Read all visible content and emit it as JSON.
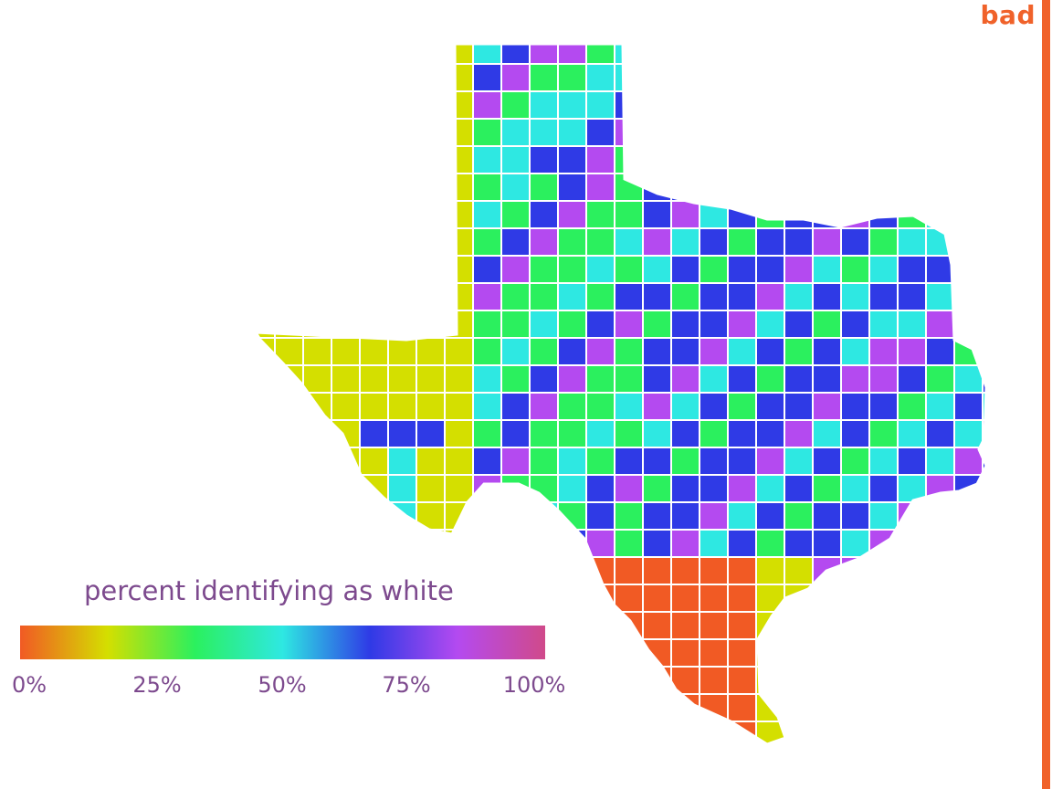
{
  "map": {
    "legend_title": "percent identifying as white",
    "legend_ticks": [
      "0%",
      "25%",
      "50%",
      "75%",
      "100%"
    ],
    "legend_colors": [
      "#f15a24",
      "#d4df00",
      "#2bf05e",
      "#2ee8e2",
      "#2f3ae6",
      "#b44af0",
      "#d04a8a"
    ],
    "range": [
      0,
      100
    ],
    "unit": "%",
    "verdict_label": "bad",
    "verdict_color": "#f0622a",
    "border_color": "#ffffff"
  }
}
